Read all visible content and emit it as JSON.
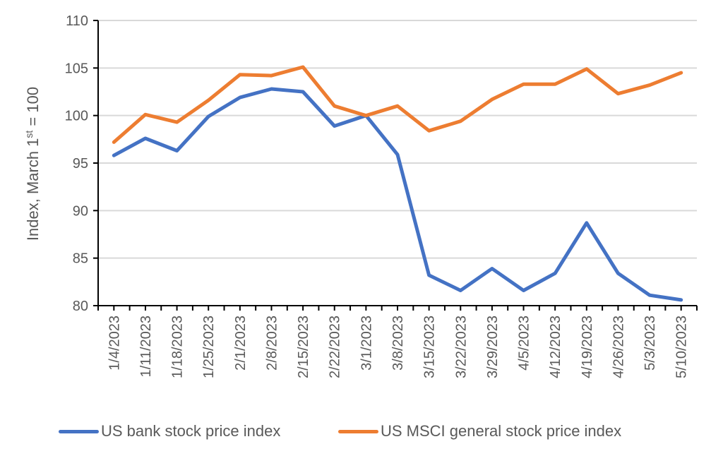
{
  "chart_data": {
    "type": "line",
    "title": "",
    "xlabel": "",
    "ylabel": "Index, March 1",
    "ylabel_sup": "st",
    "ylabel_suffix": " = 100",
    "ylim": [
      80,
      110
    ],
    "yticks": [
      80,
      85,
      90,
      95,
      100,
      105,
      110
    ],
    "grid": "horizontal",
    "legend_position": "bottom",
    "categories": [
      "1/4/2023",
      "1/11/2023",
      "1/18/2023",
      "1/25/2023",
      "2/1/2023",
      "2/8/2023",
      "2/15/2023",
      "2/22/2023",
      "3/1/2023",
      "3/8/2023",
      "3/15/2023",
      "3/22/2023",
      "3/29/2023",
      "4/5/2023",
      "4/12/2023",
      "4/19/2023",
      "4/26/2023",
      "5/3/2023",
      "5/10/2023"
    ],
    "series": [
      {
        "name": "US bank stock price index",
        "color": "#4472C4",
        "values": [
          95.8,
          97.6,
          96.3,
          99.9,
          101.9,
          102.8,
          102.5,
          98.9,
          100.0,
          95.9,
          83.2,
          81.6,
          83.9,
          81.6,
          83.4,
          88.7,
          83.4,
          81.1,
          80.6
        ]
      },
      {
        "name": "US MSCI general stock price index",
        "color": "#ED7D31",
        "values": [
          97.2,
          100.1,
          99.3,
          101.6,
          104.3,
          104.2,
          105.1,
          101.0,
          100.0,
          101.0,
          98.4,
          99.4,
          101.7,
          103.3,
          103.3,
          104.9,
          102.3,
          103.2,
          104.5
        ]
      }
    ]
  },
  "legend": {
    "items": [
      {
        "label": "US bank stock price index",
        "color": "#4472C4"
      },
      {
        "label": "US MSCI general stock price index",
        "color": "#ED7D31"
      }
    ]
  }
}
